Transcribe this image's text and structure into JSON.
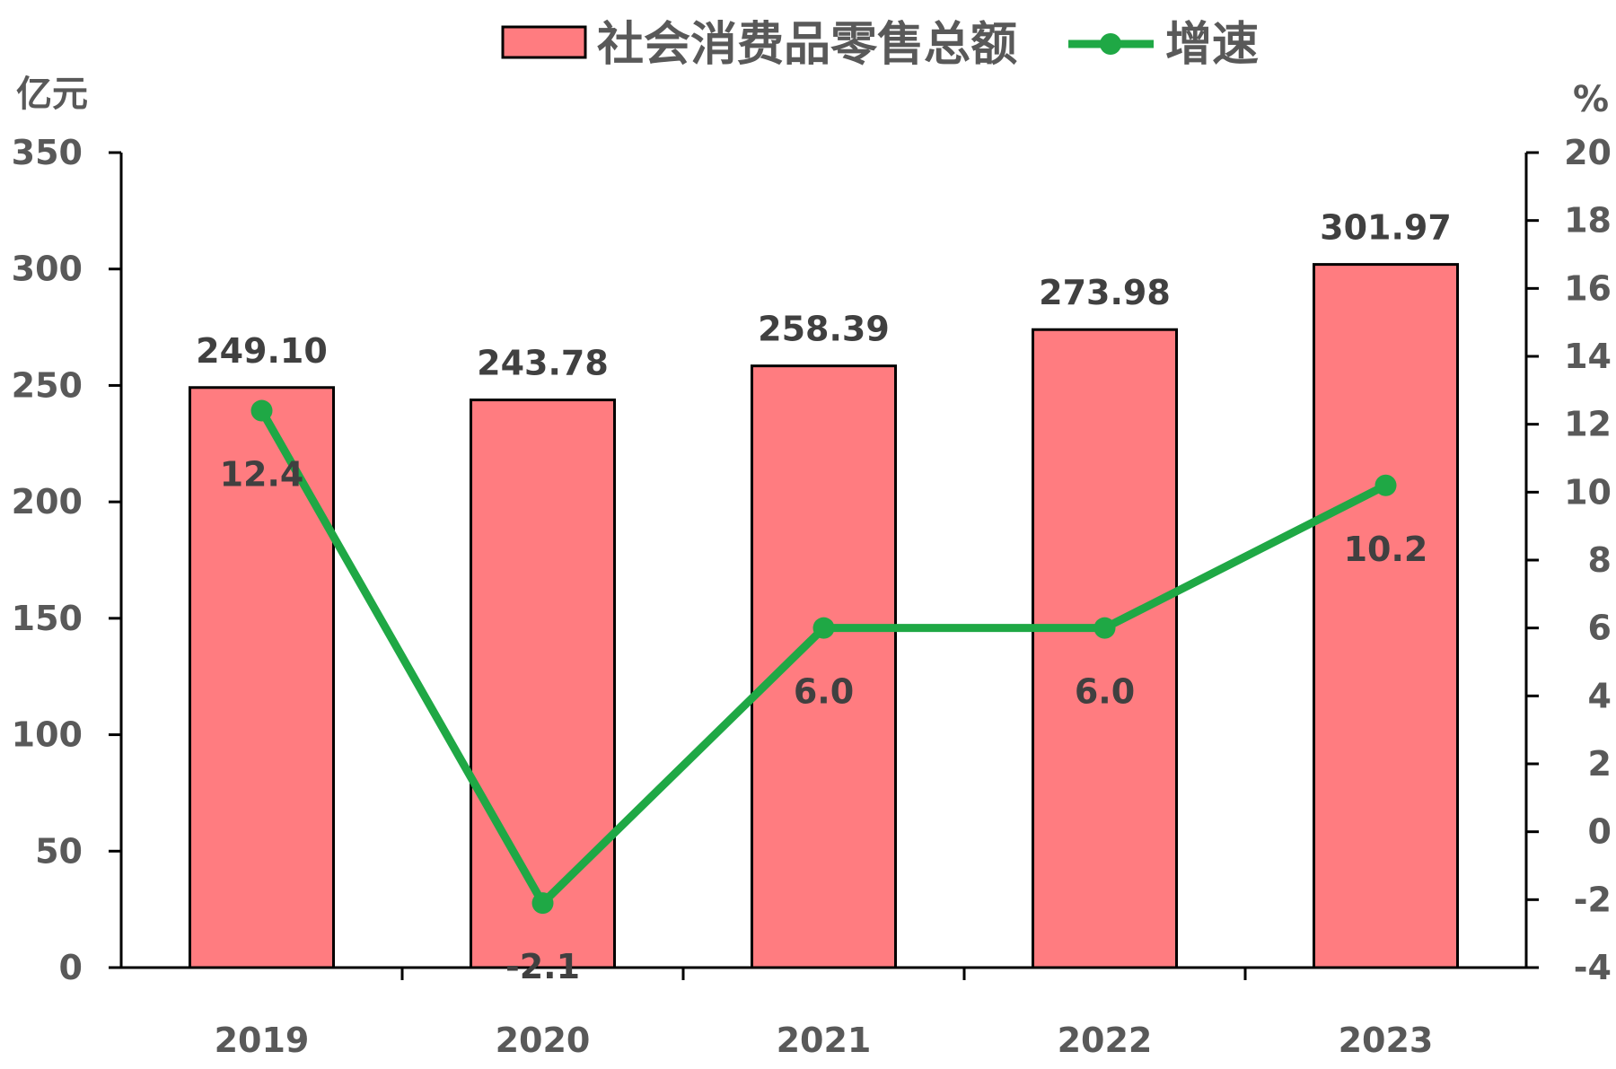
{
  "chart_data": {
    "type": "bar",
    "categories": [
      "2019",
      "2020",
      "2021",
      "2022",
      "2023"
    ],
    "series": [
      {
        "name": "社会消费品零售总额",
        "type": "bar",
        "axis": "left",
        "values": [
          249.1,
          243.78,
          258.39,
          273.98,
          301.97
        ],
        "labels": [
          "249.10",
          "243.78",
          "258.39",
          "273.98",
          "301.97"
        ]
      },
      {
        "name": "增速",
        "type": "line",
        "axis": "right",
        "values": [
          12.4,
          -2.1,
          6.0,
          6.0,
          10.2
        ],
        "labels": [
          "12.4",
          "-2.1",
          "6.0",
          "6.0",
          "10.2"
        ]
      }
    ],
    "y_left": {
      "unit": "亿元",
      "ylim": [
        0,
        350
      ],
      "ticks": [
        "0",
        "50",
        "100",
        "150",
        "200",
        "250",
        "300",
        "350"
      ]
    },
    "y_right": {
      "unit": "%",
      "ylim": [
        -4,
        20
      ],
      "ticks": [
        "-4",
        "-2",
        "0",
        "2",
        "4",
        "6",
        "8",
        "10",
        "12",
        "14",
        "16",
        "18",
        "20"
      ]
    },
    "legend_position": "top",
    "grid": false,
    "colors": {
      "bar_fill": "#ff7c80",
      "bar_stroke": "#000000",
      "line": "#1fa845",
      "axis": "#000000"
    }
  }
}
